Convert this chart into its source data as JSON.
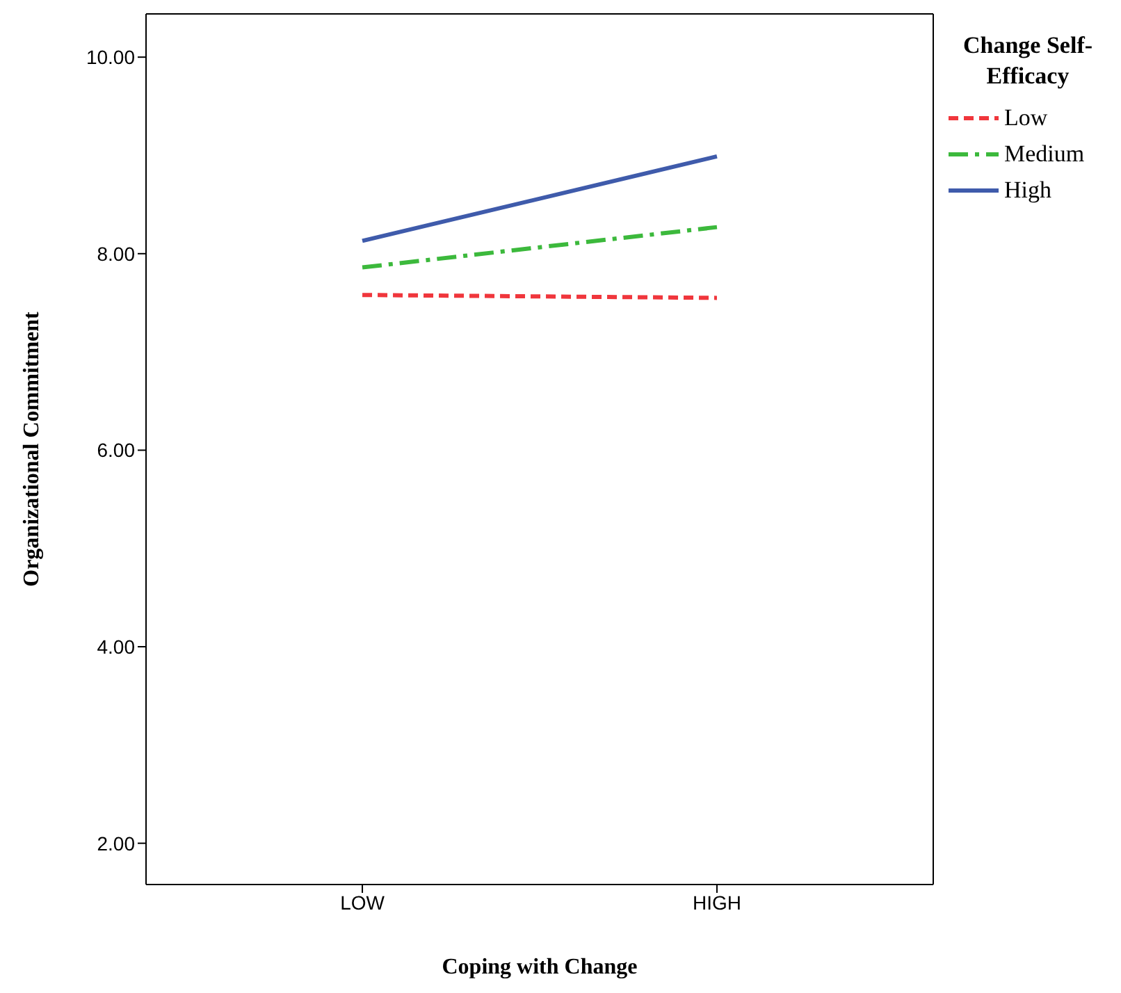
{
  "chart_data": {
    "type": "line",
    "xlabel": "Coping with Change",
    "ylabel": "Organizational Commitment",
    "legend_title": "Change Self-Efficacy",
    "categories": [
      "LOW",
      "HIGH"
    ],
    "ylim": [
      1.58,
      10.44
    ],
    "yticks": [
      {
        "value": 2,
        "label": "2.00"
      },
      {
        "value": 4,
        "label": "4.00"
      },
      {
        "value": 6,
        "label": "6.00"
      },
      {
        "value": 8,
        "label": "8.00"
      },
      {
        "value": 10,
        "label": "10.00"
      }
    ],
    "grid": false,
    "legend": "top right",
    "marker": "none",
    "series": [
      {
        "name": "Low",
        "color": "#f0363c",
        "line_style": "dashed",
        "values": [
          7.58,
          7.55
        ]
      },
      {
        "name": "Medium",
        "color": "#3cb93c",
        "line_style": "dashdot",
        "values": [
          7.86,
          8.27
        ]
      },
      {
        "name": "High",
        "color": "#3f5bab",
        "line_style": "solid",
        "values": [
          8.13,
          8.99
        ]
      }
    ]
  }
}
